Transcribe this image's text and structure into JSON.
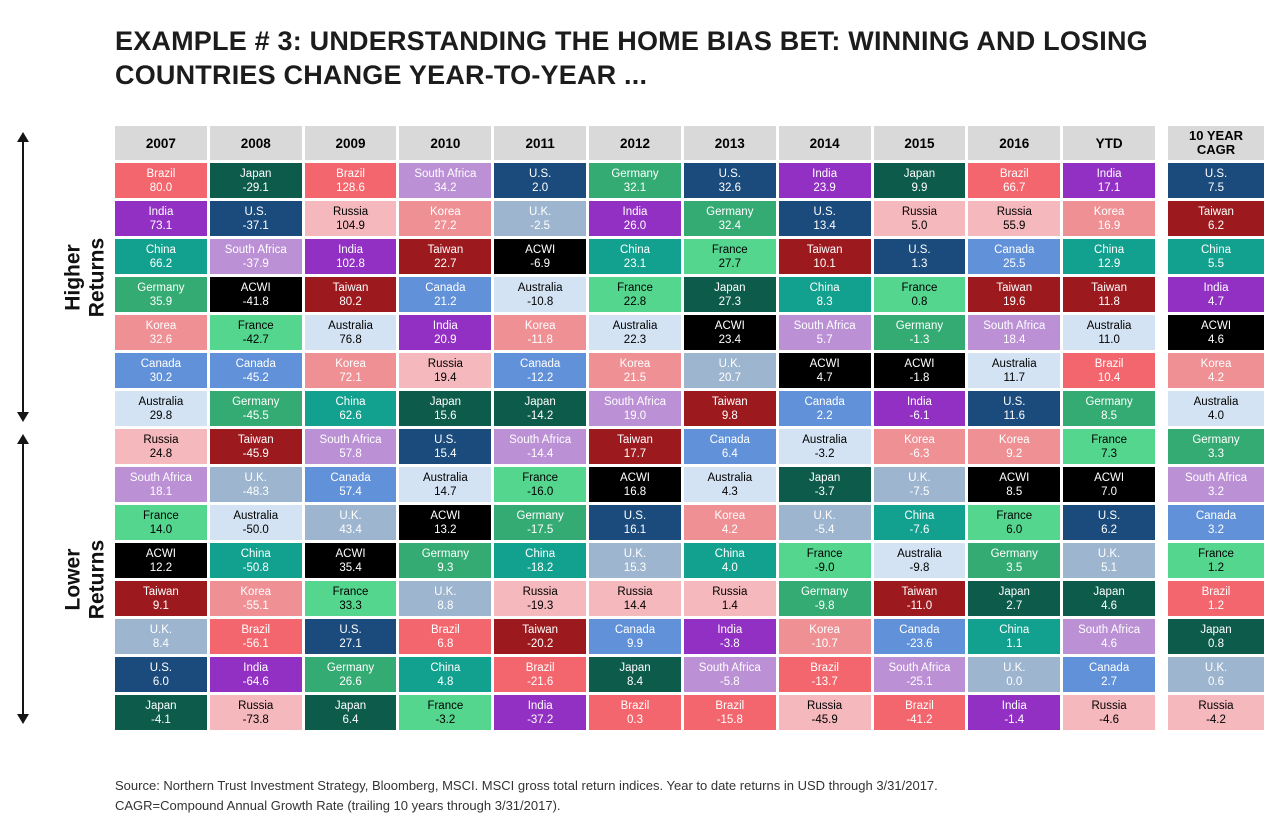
{
  "title": {
    "line1": "EXAMPLE # 3:  UNDERSTANDING THE HOME BIAS BET: WINNING AND LOSING",
    "line2": "COUNTRIES CHANGE YEAR-TO-YEAR ..."
  },
  "left_axis": {
    "higher_label": "Higher Returns",
    "lower_label": "Lower Returns"
  },
  "footer": {
    "line1": "Source: Northern Trust Investment Strategy, Bloomberg, MSCI. MSCI gross total return indices. Year to date returns in USD through 3/31/2017.",
    "line2": "CAGR=Compound Annual Growth Rate (trailing 10 years through 3/31/2017)."
  },
  "country_colors": {
    "Brazil": {
      "bg": "#f3666d",
      "fg": "#ffffff"
    },
    "India": {
      "bg": "#9330c4",
      "fg": "#ffffff"
    },
    "China": {
      "bg": "#13a18f",
      "fg": "#ffffff"
    },
    "Germany": {
      "bg": "#33ab72",
      "fg": "#ffffff"
    },
    "Korea": {
      "bg": "#ef9095",
      "fg": "#ffffff"
    },
    "Canada": {
      "bg": "#6191d8",
      "fg": "#ffffff"
    },
    "Australia": {
      "bg": "#d4e3f3",
      "fg": "#000000"
    },
    "Russia": {
      "bg": "#f4b8bd",
      "fg": "#000000"
    },
    "South Africa": {
      "bg": "#bb90d5",
      "fg": "#ffffff"
    },
    "France": {
      "bg": "#55d68f",
      "fg": "#000000"
    },
    "ACWI": {
      "bg": "#000000",
      "fg": "#ffffff"
    },
    "Taiwan": {
      "bg": "#9c1a1e",
      "fg": "#ffffff"
    },
    "U.K.": {
      "bg": "#9db5cf",
      "fg": "#ffffff"
    },
    "U.S.": {
      "bg": "#1b4b7c",
      "fg": "#ffffff"
    },
    "Japan": {
      "bg": "#0d5b4b",
      "fg": "#ffffff"
    }
  },
  "chart_data": {
    "type": "heatmap",
    "title": "EXAMPLE # 3: UNDERSTANDING THE HOME BIAS BET: WINNING AND LOSING COUNTRIES CHANGE YEAR-TO-YEAR ...",
    "columns": [
      {
        "year": "2007",
        "cells": [
          [
            "Brazil",
            "80.0"
          ],
          [
            "India",
            "73.1"
          ],
          [
            "China",
            "66.2"
          ],
          [
            "Germany",
            "35.9"
          ],
          [
            "Korea",
            "32.6"
          ],
          [
            "Canada",
            "30.2"
          ],
          [
            "Australia",
            "29.8"
          ],
          [
            "Russia",
            "24.8"
          ],
          [
            "South Africa",
            "18.1"
          ],
          [
            "France",
            "14.0"
          ],
          [
            "ACWI",
            "12.2"
          ],
          [
            "Taiwan",
            "9.1"
          ],
          [
            "U.K.",
            "8.4"
          ],
          [
            "U.S.",
            "6.0"
          ],
          [
            "Japan",
            "-4.1"
          ]
        ]
      },
      {
        "year": "2008",
        "cells": [
          [
            "Japan",
            "-29.1"
          ],
          [
            "U.S.",
            "-37.1"
          ],
          [
            "South Africa",
            "-37.9"
          ],
          [
            "ACWI",
            "-41.8"
          ],
          [
            "France",
            "-42.7"
          ],
          [
            "Canada",
            "-45.2"
          ],
          [
            "Germany",
            "-45.5"
          ],
          [
            "Taiwan",
            "-45.9"
          ],
          [
            "U.K.",
            "-48.3"
          ],
          [
            "Australia",
            "-50.0"
          ],
          [
            "China",
            "-50.8"
          ],
          [
            "Korea",
            "-55.1"
          ],
          [
            "Brazil",
            "-56.1"
          ],
          [
            "India",
            "-64.6"
          ],
          [
            "Russia",
            "-73.8"
          ]
        ]
      },
      {
        "year": "2009",
        "cells": [
          [
            "Brazil",
            "128.6"
          ],
          [
            "Russia",
            "104.9"
          ],
          [
            "India",
            "102.8"
          ],
          [
            "Taiwan",
            "80.2"
          ],
          [
            "Australia",
            "76.8"
          ],
          [
            "Korea",
            "72.1"
          ],
          [
            "China",
            "62.6"
          ],
          [
            "South Africa",
            "57.8"
          ],
          [
            "Canada",
            "57.4"
          ],
          [
            "U.K.",
            "43.4"
          ],
          [
            "ACWI",
            "35.4"
          ],
          [
            "France",
            "33.3"
          ],
          [
            "U.S.",
            "27.1"
          ],
          [
            "Germany",
            "26.6"
          ],
          [
            "Japan",
            "6.4"
          ]
        ]
      },
      {
        "year": "2010",
        "cells": [
          [
            "South Africa",
            "34.2"
          ],
          [
            "Korea",
            "27.2"
          ],
          [
            "Taiwan",
            "22.7"
          ],
          [
            "Canada",
            "21.2"
          ],
          [
            "India",
            "20.9"
          ],
          [
            "Russia",
            "19.4"
          ],
          [
            "Japan",
            "15.6"
          ],
          [
            "U.S.",
            "15.4"
          ],
          [
            "Australia",
            "14.7"
          ],
          [
            "ACWI",
            "13.2"
          ],
          [
            "Germany",
            "9.3"
          ],
          [
            "U.K.",
            "8.8"
          ],
          [
            "Brazil",
            "6.8"
          ],
          [
            "China",
            "4.8"
          ],
          [
            "France",
            "-3.2"
          ]
        ]
      },
      {
        "year": "2011",
        "cells": [
          [
            "U.S.",
            "2.0"
          ],
          [
            "U.K.",
            "-2.5"
          ],
          [
            "ACWI",
            "-6.9"
          ],
          [
            "Australia",
            "-10.8"
          ],
          [
            "Korea",
            "-11.8"
          ],
          [
            "Canada",
            "-12.2"
          ],
          [
            "Japan",
            "-14.2"
          ],
          [
            "South Africa",
            "-14.4"
          ],
          [
            "France",
            "-16.0"
          ],
          [
            "Germany",
            "-17.5"
          ],
          [
            "China",
            "-18.2"
          ],
          [
            "Russia",
            "-19.3"
          ],
          [
            "Taiwan",
            "-20.2"
          ],
          [
            "Brazil",
            "-21.6"
          ],
          [
            "India",
            "-37.2"
          ]
        ]
      },
      {
        "year": "2012",
        "cells": [
          [
            "Germany",
            "32.1"
          ],
          [
            "India",
            "26.0"
          ],
          [
            "China",
            "23.1"
          ],
          [
            "France",
            "22.8"
          ],
          [
            "Australia",
            "22.3"
          ],
          [
            "Korea",
            "21.5"
          ],
          [
            "South Africa",
            "19.0"
          ],
          [
            "Taiwan",
            "17.7"
          ],
          [
            "ACWI",
            "16.8"
          ],
          [
            "U.S.",
            "16.1"
          ],
          [
            "U.K.",
            "15.3"
          ],
          [
            "Russia",
            "14.4"
          ],
          [
            "Canada",
            "9.9"
          ],
          [
            "Japan",
            "8.4"
          ],
          [
            "Brazil",
            "0.3"
          ]
        ]
      },
      {
        "year": "2013",
        "cells": [
          [
            "U.S.",
            "32.6"
          ],
          [
            "Germany",
            "32.4"
          ],
          [
            "France",
            "27.7"
          ],
          [
            "Japan",
            "27.3"
          ],
          [
            "ACWI",
            "23.4"
          ],
          [
            "U.K.",
            "20.7"
          ],
          [
            "Taiwan",
            "9.8"
          ],
          [
            "Canada",
            "6.4"
          ],
          [
            "Australia",
            "4.3"
          ],
          [
            "Korea",
            "4.2"
          ],
          [
            "China",
            "4.0"
          ],
          [
            "Russia",
            "1.4"
          ],
          [
            "India",
            "-3.8"
          ],
          [
            "South Africa",
            "-5.8"
          ],
          [
            "Brazil",
            "-15.8"
          ]
        ]
      },
      {
        "year": "2014",
        "cells": [
          [
            "India",
            "23.9"
          ],
          [
            "U.S.",
            "13.4"
          ],
          [
            "Taiwan",
            "10.1"
          ],
          [
            "China",
            "8.3"
          ],
          [
            "South Africa",
            "5.7"
          ],
          [
            "ACWI",
            "4.7"
          ],
          [
            "Canada",
            "2.2"
          ],
          [
            "Australia",
            "-3.2"
          ],
          [
            "Japan",
            "-3.7"
          ],
          [
            "U.K.",
            "-5.4"
          ],
          [
            "France",
            "-9.0"
          ],
          [
            "Germany",
            "-9.8"
          ],
          [
            "Korea",
            "-10.7"
          ],
          [
            "Brazil",
            "-13.7"
          ],
          [
            "Russia",
            "-45.9"
          ]
        ]
      },
      {
        "year": "2015",
        "cells": [
          [
            "Japan",
            "9.9"
          ],
          [
            "Russia",
            "5.0"
          ],
          [
            "U.S.",
            "1.3"
          ],
          [
            "France",
            "0.8"
          ],
          [
            "Germany",
            "-1.3"
          ],
          [
            "ACWI",
            "-1.8"
          ],
          [
            "India",
            "-6.1"
          ],
          [
            "Korea",
            "-6.3"
          ],
          [
            "U.K.",
            "-7.5"
          ],
          [
            "China",
            "-7.6"
          ],
          [
            "Australia",
            "-9.8"
          ],
          [
            "Taiwan",
            "-11.0"
          ],
          [
            "Canada",
            "-23.6"
          ],
          [
            "South Africa",
            "-25.1"
          ],
          [
            "Brazil",
            "-41.2"
          ]
        ]
      },
      {
        "year": "2016",
        "cells": [
          [
            "Brazil",
            "66.7"
          ],
          [
            "Russia",
            "55.9"
          ],
          [
            "Canada",
            "25.5"
          ],
          [
            "Taiwan",
            "19.6"
          ],
          [
            "South Africa",
            "18.4"
          ],
          [
            "Australia",
            "11.7"
          ],
          [
            "U.S.",
            "11.6"
          ],
          [
            "Korea",
            "9.2"
          ],
          [
            "ACWI",
            "8.5"
          ],
          [
            "France",
            "6.0"
          ],
          [
            "Germany",
            "3.5"
          ],
          [
            "Japan",
            "2.7"
          ],
          [
            "China",
            "1.1"
          ],
          [
            "U.K.",
            "0.0"
          ],
          [
            "India",
            "-1.4"
          ]
        ]
      },
      {
        "year": "YTD",
        "cells": [
          [
            "India",
            "17.1"
          ],
          [
            "Korea",
            "16.9"
          ],
          [
            "China",
            "12.9"
          ],
          [
            "Taiwan",
            "11.8"
          ],
          [
            "Australia",
            "11.0"
          ],
          [
            "Brazil",
            "10.4"
          ],
          [
            "Germany",
            "8.5"
          ],
          [
            "France",
            "7.3"
          ],
          [
            "ACWI",
            "7.0"
          ],
          [
            "U.S.",
            "6.2"
          ],
          [
            "U.K.",
            "5.1"
          ],
          [
            "Japan",
            "4.6"
          ],
          [
            "South Africa",
            "4.6"
          ],
          [
            "Canada",
            "2.7"
          ],
          [
            "Russia",
            "-4.6"
          ]
        ]
      }
    ],
    "cagr": {
      "label": "10 YEAR CAGR",
      "cells": [
        [
          "U.S.",
          "7.5"
        ],
        [
          "Taiwan",
          "6.2"
        ],
        [
          "China",
          "5.5"
        ],
        [
          "India",
          "4.7"
        ],
        [
          "ACWI",
          "4.6"
        ],
        [
          "Korea",
          "4.2"
        ],
        [
          "Australia",
          "4.0"
        ],
        [
          "Germany",
          "3.3"
        ],
        [
          "South Africa",
          "3.2"
        ],
        [
          "Canada",
          "3.2"
        ],
        [
          "France",
          "1.2"
        ],
        [
          "Brazil",
          "1.2"
        ],
        [
          "Japan",
          "0.8"
        ],
        [
          "U.K.",
          "0.6"
        ],
        [
          "Russia",
          "-4.2"
        ]
      ]
    }
  }
}
